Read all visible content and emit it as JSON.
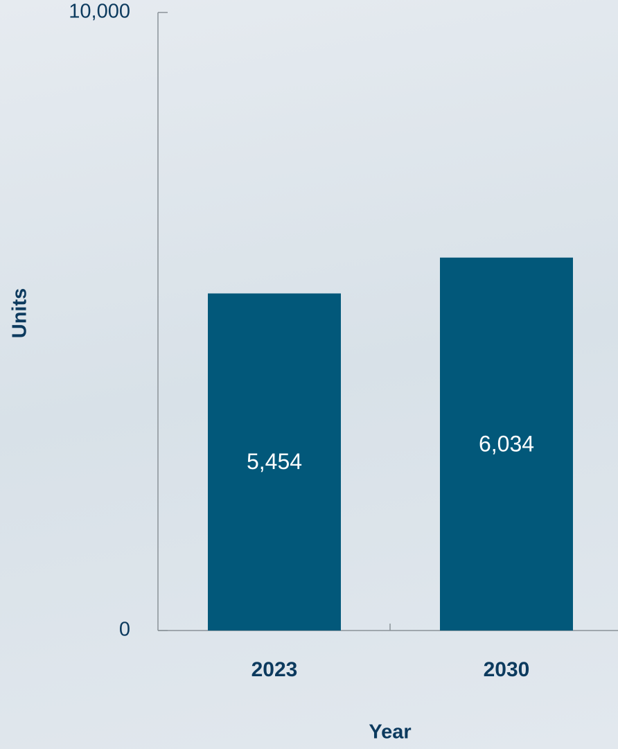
{
  "chart_data": {
    "type": "bar",
    "categories": [
      "2023",
      "2030"
    ],
    "values": [
      5454,
      6034
    ],
    "value_labels": [
      "5,454",
      "6,034"
    ],
    "color": "#02587a",
    "ylim": [
      0,
      10000
    ],
    "yticks": [
      0,
      {
        "value": 10000,
        "label": "10,000"
      }
    ],
    "xlabel": "Year",
    "ylabel": "Units"
  }
}
